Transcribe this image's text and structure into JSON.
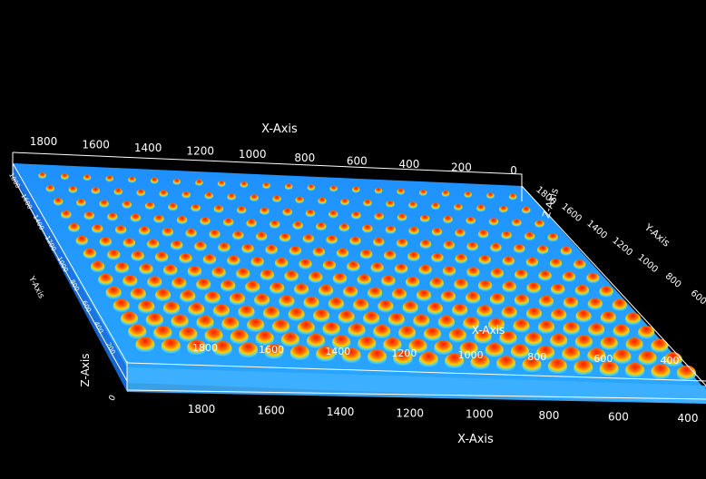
{
  "scene": {
    "type": "3d-surface-render",
    "background": "#000000",
    "colormap": [
      "#0a2cff",
      "#1e90ff",
      "#3fd0ff",
      "#ffd000",
      "#ff6a00",
      "#ff1a00"
    ]
  },
  "axes": {
    "x_top": {
      "title": "X-Axis",
      "ticks": [
        "1800",
        "1600",
        "1400",
        "1200",
        "1000",
        "800",
        "600",
        "400",
        "200",
        "0"
      ]
    },
    "x_bottom": {
      "title": "X-Axis",
      "ticks": [
        "1800",
        "1600",
        "1400",
        "1200",
        "1000",
        "800",
        "600",
        "400"
      ]
    },
    "x_inner": {
      "title": "X-Axis",
      "ticks": [
        "1800",
        "1600",
        "1400",
        "1200",
        "1000",
        "800",
        "600",
        "400"
      ]
    },
    "y_right": {
      "title": "Y-Axis",
      "ticks": [
        "1800",
        "1600",
        "1400",
        "1200",
        "1000",
        "800",
        "600"
      ]
    },
    "y_left": {
      "title": "Y-Axis",
      "ticks": [
        "1800",
        "1600",
        "1400",
        "1200",
        "1000",
        "800",
        "600",
        "400",
        "200"
      ]
    },
    "z_left": {
      "title": "Z-Axis",
      "ticks": [
        "0"
      ]
    },
    "z_right": {
      "title": "Z-Axis"
    }
  },
  "bumps": {
    "rows": 14,
    "cols": 22
  }
}
